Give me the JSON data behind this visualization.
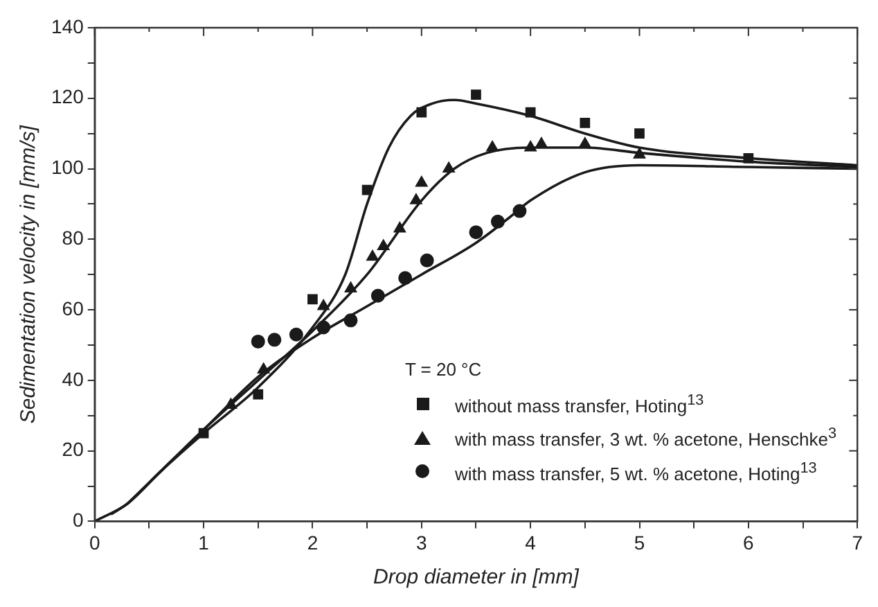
{
  "chart_data": {
    "type": "scatter",
    "xlabel": "Drop diameter in [mm]",
    "ylabel": "Sedimentation velocity in [mm/s]",
    "legend_title": "T = 20 °C",
    "legend": "bottom right",
    "grid": false,
    "xlim": [
      0,
      7
    ],
    "ylim": [
      0,
      140
    ],
    "xticks": [
      0,
      {
        "value": 0.5,
        "label": null
      },
      1,
      {
        "value": 1.5,
        "label": null
      },
      2,
      {
        "value": 2.5,
        "label": null
      },
      3,
      {
        "value": 3.5,
        "label": null
      },
      4,
      {
        "value": 4.5,
        "label": null
      },
      5,
      {
        "value": 5.5,
        "label": null
      },
      6,
      {
        "value": 6.5,
        "label": null
      },
      7
    ],
    "yticks": [
      0,
      {
        "value": 10,
        "label": null
      },
      20,
      {
        "value": 30,
        "label": null
      },
      40,
      {
        "value": 50,
        "label": null
      },
      60,
      {
        "value": 70,
        "label": null
      },
      80,
      {
        "value": 90,
        "label": null
      },
      100,
      {
        "value": 110,
        "label": null
      },
      120,
      {
        "value": 130,
        "label": null
      },
      140
    ],
    "series": [
      {
        "name": "without mass transfer, Hoting$^{13}$",
        "marker": "square",
        "color": "#1a1a1a",
        "x": [
          1.0,
          1.5,
          2.0,
          2.5,
          3.0,
          3.5,
          4.0,
          4.5,
          5.0,
          6.0
        ],
        "values": [
          25,
          36,
          63,
          94,
          116,
          121,
          116,
          113,
          110,
          103
        ]
      },
      {
        "name": "with mass transfer, 3 wt. % acetone, Henschke$^{3}$",
        "marker": "triangle",
        "color": "#1a1a1a",
        "x": [
          1.25,
          1.55,
          2.1,
          2.35,
          2.55,
          2.65,
          2.8,
          2.95,
          3.0,
          3.25,
          3.65,
          4.0,
          4.1,
          4.5,
          5.0
        ],
        "values": [
          33,
          43,
          61,
          66,
          75,
          78,
          83,
          91,
          96,
          100,
          106,
          106,
          107,
          107,
          104
        ]
      },
      {
        "name": "with mass transfer, 5 wt. % acetone, Hoting$^{13}$",
        "marker": "circle",
        "color": "#1a1a1a",
        "x": [
          1.5,
          1.65,
          1.85,
          2.1,
          2.35,
          2.6,
          2.85,
          3.05,
          3.5,
          3.7,
          3.9
        ],
        "values": [
          51,
          51.5,
          53,
          55,
          57,
          64,
          69,
          74,
          82,
          85,
          88
        ]
      },
      {
        "type": "line",
        "marker": "none",
        "color": "#1a1a1a",
        "x": [
          0,
          0.3,
          0.6,
          1,
          1.5,
          2,
          2.3,
          2.5,
          2.7,
          2.9,
          3.1,
          3.3,
          3.5,
          4,
          4.5,
          5,
          6,
          7
        ],
        "values": [
          0,
          5,
          14,
          25,
          38,
          55,
          70,
          90,
          106,
          115,
          118.5,
          119.5,
          118.5,
          115,
          110,
          106,
          103,
          101
        ]
      },
      {
        "type": "line",
        "marker": "none",
        "color": "#1a1a1a",
        "x": [
          0.15,
          0.3,
          0.6,
          1,
          1.5,
          2,
          2.5,
          3,
          3.3,
          3.6,
          4,
          4.5,
          5,
          6,
          7
        ],
        "values": [
          2,
          5,
          14,
          26,
          40,
          54,
          70,
          91,
          100,
          104.5,
          106,
          106,
          104.5,
          102,
          100.5
        ]
      },
      {
        "type": "line",
        "marker": "none",
        "color": "#1a1a1a",
        "x": [
          0.3,
          0.6,
          1,
          1.5,
          2,
          2.5,
          3,
          3.5,
          3.8,
          4,
          4.5,
          5,
          6,
          7
        ],
        "values": [
          5,
          14,
          26,
          41,
          52,
          61,
          70,
          79,
          86,
          91,
          99,
          101,
          100.5,
          100
        ]
      }
    ]
  }
}
